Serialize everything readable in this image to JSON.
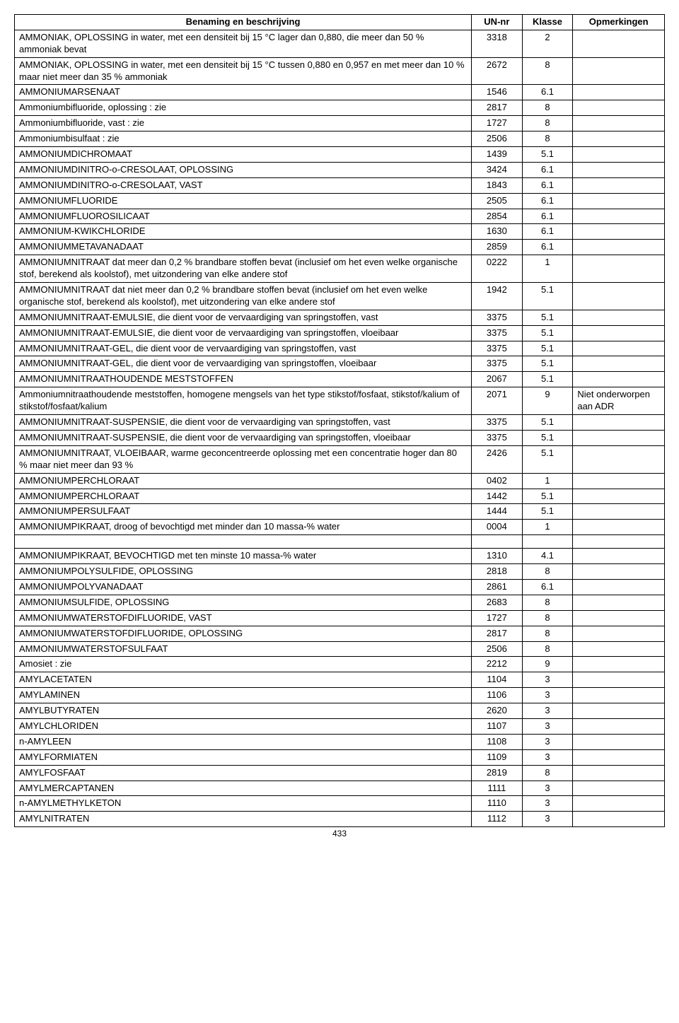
{
  "headers": {
    "benaming": "Benaming en beschrijving",
    "un": "UN-nr",
    "klasse": "Klasse",
    "opm": "Opmerkingen"
  },
  "page_number": "433",
  "rows": [
    {
      "b": "AMMONIAK, OPLOSSING in water, met een densiteit bij 15 °C lager dan 0,880, die meer dan 50 % ammoniak bevat",
      "u": "3318",
      "k": "2",
      "o": ""
    },
    {
      "b": "AMMONIAK, OPLOSSING in water, met een densiteit bij 15 °C tussen 0,880 en 0,957 en met meer dan 10 % maar niet meer dan 35 % ammoniak",
      "u": "2672",
      "k": "8",
      "o": ""
    },
    {
      "b": "AMMONIUMARSENAAT",
      "u": "1546",
      "k": "6.1",
      "o": ""
    },
    {
      "b": "Ammoniumbifluoride, oplossing : zie",
      "u": "2817",
      "k": "8",
      "o": ""
    },
    {
      "b": "Ammoniumbifluoride, vast : zie",
      "u": "1727",
      "k": "8",
      "o": ""
    },
    {
      "b": "Ammoniumbisulfaat : zie",
      "u": "2506",
      "k": "8",
      "o": ""
    },
    {
      "b": "AMMONIUMDICHROMAAT",
      "u": "1439",
      "k": "5.1",
      "o": ""
    },
    {
      "b": "AMMONIUMDINITRO-o-CRESOLAAT, OPLOSSING",
      "u": "3424",
      "k": "6.1",
      "o": ""
    },
    {
      "b": "AMMONIUMDINITRO-o-CRESOLAAT, VAST",
      "u": "1843",
      "k": "6.1",
      "o": ""
    },
    {
      "b": "AMMONIUMFLUORIDE",
      "u": "2505",
      "k": "6.1",
      "o": ""
    },
    {
      "b": "AMMONIUMFLUOROSILICAAT",
      "u": "2854",
      "k": "6.1",
      "o": ""
    },
    {
      "b": "AMMONIUM-KWIKCHLORIDE",
      "u": "1630",
      "k": "6.1",
      "o": ""
    },
    {
      "b": "AMMONIUMMETAVANADAAT",
      "u": "2859",
      "k": "6.1",
      "o": ""
    },
    {
      "b": "AMMONIUMNITRAAT dat meer dan 0,2 % brandbare stoffen bevat (inclusief om het even welke organische stof, berekend als koolstof), met uitzondering van elke andere stof",
      "u": "0222",
      "k": "1",
      "o": ""
    },
    {
      "b": "AMMONIUMNITRAAT dat niet meer dan 0,2 % brandbare stoffen bevat (inclusief om het even welke organische stof, berekend als koolstof), met uitzondering van elke andere stof",
      "u": "1942",
      "k": "5.1",
      "o": ""
    },
    {
      "b": "AMMONIUMNITRAAT-EMULSIE, die dient voor de vervaardiging van springstoffen, vast",
      "u": "3375",
      "k": "5.1",
      "o": ""
    },
    {
      "b": "AMMONIUMNITRAAT-EMULSIE, die dient voor de vervaardiging van springstoffen, vloeibaar",
      "u": "3375",
      "k": "5.1",
      "o": ""
    },
    {
      "b": "AMMONIUMNITRAAT-GEL, die dient voor de vervaardiging van springstoffen, vast",
      "u": "3375",
      "k": "5.1",
      "o": ""
    },
    {
      "b": "AMMONIUMNITRAAT-GEL, die dient voor de vervaardiging van springstoffen, vloeibaar",
      "u": "3375",
      "k": "5.1",
      "o": ""
    },
    {
      "b": "AMMONIUMNITRAATHOUDENDE MESTSTOFFEN",
      "u": "2067",
      "k": "5.1",
      "o": ""
    },
    {
      "b": "Ammoniumnitraathoudende meststoffen, homogene mengsels van het type stikstof/fosfaat, stikstof/kalium of stikstof/fosfaat/kalium",
      "u": "2071",
      "k": "9",
      "o": "Niet onderworpen aan ADR"
    },
    {
      "b": "AMMONIUMNITRAAT-SUSPENSIE, die dient voor de vervaardiging van springstoffen, vast",
      "u": "3375",
      "k": "5.1",
      "o": ""
    },
    {
      "b": "AMMONIUMNITRAAT-SUSPENSIE, die dient voor de vervaardiging van springstoffen, vloeibaar",
      "u": "3375",
      "k": "5.1",
      "o": ""
    },
    {
      "b": "AMMONIUMNITRAAT, VLOEIBAAR, warme geconcentreerde oplossing met een concentratie hoger dan 80 % maar niet meer dan 93 %",
      "u": "2426",
      "k": "5.1",
      "o": ""
    },
    {
      "b": "AMMONIUMPERCHLORAAT",
      "u": "0402",
      "k": "1",
      "o": ""
    },
    {
      "b": "AMMONIUMPERCHLORAAT",
      "u": "1442",
      "k": "5.1",
      "o": ""
    },
    {
      "b": "AMMONIUMPERSULFAAT",
      "u": "1444",
      "k": "5.1",
      "o": ""
    },
    {
      "b": "AMMONIUMPIKRAAT, droog of bevochtigd met minder dan 10 massa-% water",
      "u": "0004",
      "k": "1",
      "o": ""
    },
    {
      "b": "__SPACER__",
      "u": "",
      "k": "",
      "o": ""
    },
    {
      "b": "AMMONIUMPIKRAAT, BEVOCHTIGD met ten minste 10 massa-% water",
      "u": "1310",
      "k": "4.1",
      "o": ""
    },
    {
      "b": "AMMONIUMPOLYSULFIDE, OPLOSSING",
      "u": "2818",
      "k": "8",
      "o": ""
    },
    {
      "b": "AMMONIUMPOLYVANADAAT",
      "u": "2861",
      "k": "6.1",
      "o": ""
    },
    {
      "b": "AMMONIUMSULFIDE, OPLOSSING",
      "u": "2683",
      "k": "8",
      "o": ""
    },
    {
      "b": "AMMONIUMWATERSTOFDIFLUORIDE, VAST",
      "u": "1727",
      "k": "8",
      "o": ""
    },
    {
      "b": "AMMONIUMWATERSTOFDIFLUORIDE, OPLOSSING",
      "u": "2817",
      "k": "8",
      "o": ""
    },
    {
      "b": "AMMONIUMWATERSTOFSULFAAT",
      "u": "2506",
      "k": "8",
      "o": ""
    },
    {
      "b": "Amosiet : zie",
      "u": "2212",
      "k": "9",
      "o": ""
    },
    {
      "b": "AMYLACETATEN",
      "u": "1104",
      "k": "3",
      "o": ""
    },
    {
      "b": "AMYLAMINEN",
      "u": "1106",
      "k": "3",
      "o": ""
    },
    {
      "b": "AMYLBUTYRATEN",
      "u": "2620",
      "k": "3",
      "o": ""
    },
    {
      "b": "AMYLCHLORIDEN",
      "u": "1107",
      "k": "3",
      "o": ""
    },
    {
      "b": "n-AMYLEEN",
      "u": "1108",
      "k": "3",
      "o": ""
    },
    {
      "b": "AMYLFORMIATEN",
      "u": "1109",
      "k": "3",
      "o": ""
    },
    {
      "b": "AMYLFOSFAAT",
      "u": "2819",
      "k": "8",
      "o": ""
    },
    {
      "b": "AMYLMERCAPTANEN",
      "u": "1111",
      "k": "3",
      "o": ""
    },
    {
      "b": "n-AMYLMETHYLKETON",
      "u": "1110",
      "k": "3",
      "o": ""
    },
    {
      "b": "AMYLNITRATEN",
      "u": "1112",
      "k": "3",
      "o": ""
    }
  ]
}
